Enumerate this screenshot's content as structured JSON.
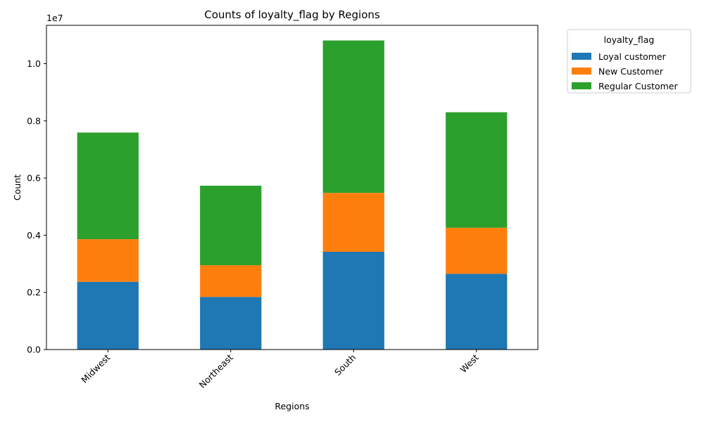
{
  "chart_data": {
    "type": "bar",
    "stacked": true,
    "title": "Counts of loyalty_flag by Regions",
    "xlabel": "Regions",
    "ylabel": "Count",
    "y_offset_text": "1e7",
    "categories": [
      "Midwest",
      "Northeast",
      "South",
      "West"
    ],
    "series": [
      {
        "name": "Loyal customer",
        "color": "#1f77b4",
        "values": [
          2370000,
          1840000,
          3420000,
          2650000
        ]
      },
      {
        "name": "New Customer",
        "color": "#ff7f0e",
        "values": [
          1490000,
          1110000,
          2060000,
          1610000
        ]
      },
      {
        "name": "Regular Customer",
        "color": "#2ca02c",
        "values": [
          3730000,
          2780000,
          5330000,
          4040000
        ]
      }
    ],
    "ylim": [
      0,
      11340000
    ],
    "yticks": [
      0,
      2000000,
      4000000,
      6000000,
      8000000,
      10000000
    ],
    "ytick_labels": [
      "0.0",
      "0.2",
      "0.4",
      "0.6",
      "0.8",
      "1.0"
    ],
    "xtick_rotation": 45,
    "legend": {
      "title": "loyalty_flag",
      "placement": "outside-top-right"
    },
    "grid": false
  }
}
